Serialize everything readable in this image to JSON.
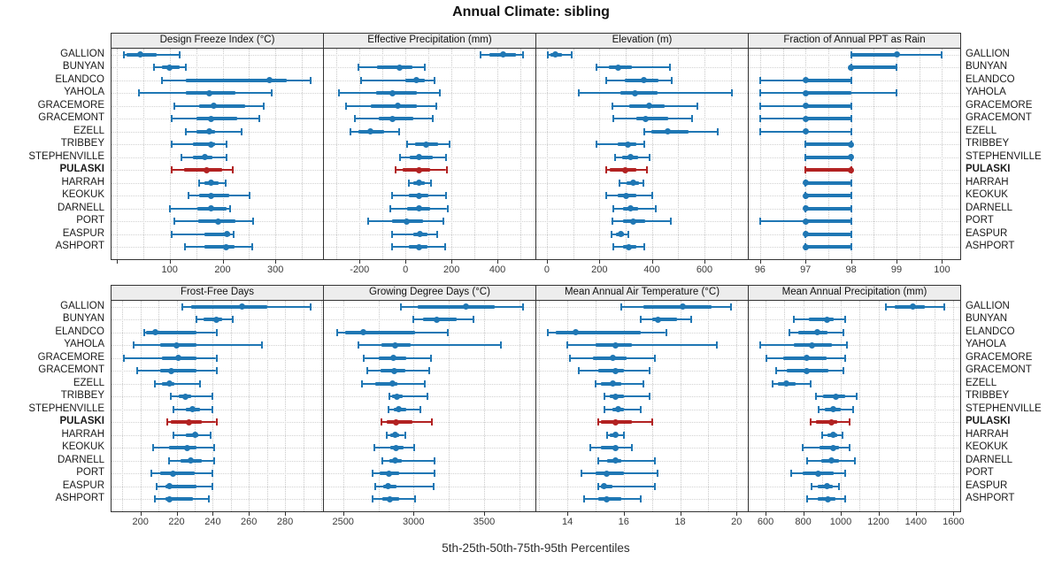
{
  "title": "Annual Climate: sibling",
  "x_axis_footer": "5th-25th-50th-75th-95th Percentiles",
  "locations": [
    "GALLION",
    "BUNYAN",
    "ELANDCO",
    "YAHOLA",
    "GRACEMORE",
    "GRACEMONT",
    "EZELL",
    "TRIBBEY",
    "STEPHENVILLE",
    "PULASKI",
    "HARRAH",
    "KEOKUK",
    "DARNELL",
    "PORT",
    "EASPUR",
    "ASHPORT"
  ],
  "highlight_location": "PULASKI",
  "percentile_levels": [
    5,
    25,
    50,
    75,
    95
  ],
  "colors": {
    "series": "#1f77b4",
    "highlight": "#b22222",
    "strip_bg": "#ededed",
    "panel_border": "#333333",
    "grid": "#c9c9c9",
    "tick_text": "#3a3a3a",
    "label_text": "#1a1a1a"
  },
  "chart_data": [
    {
      "type": "percentile-dotplot",
      "title": "Design Freeze Index (°C)",
      "xlim": [
        -10,
        390
      ],
      "grid_step": 50,
      "tick_values": [
        0,
        100,
        200,
        300
      ],
      "tick_labels": [
        "",
        "100",
        "200",
        "300"
      ],
      "percentiles": [
        [
          14,
          19,
          44,
          75,
          119
        ],
        [
          71,
          86,
          100,
          119,
          131
        ],
        [
          86,
          131,
          289,
          322,
          366
        ],
        [
          42,
          131,
          175,
          225,
          293
        ],
        [
          108,
          156,
          183,
          242,
          278
        ],
        [
          104,
          150,
          178,
          228,
          269
        ],
        [
          131,
          150,
          175,
          186,
          236
        ],
        [
          104,
          144,
          178,
          186,
          208
        ],
        [
          122,
          144,
          167,
          181,
          208
        ],
        [
          104,
          127,
          169,
          200,
          219
        ],
        [
          156,
          165,
          179,
          192,
          206
        ],
        [
          135,
          155,
          178,
          212,
          251
        ],
        [
          100,
          153,
          179,
          208,
          214
        ],
        [
          109,
          154,
          192,
          225,
          258
        ],
        [
          104,
          166,
          209,
          215,
          221
        ],
        [
          128,
          166,
          206,
          222,
          256
        ]
      ]
    },
    {
      "type": "percentile-dotplot",
      "title": "Effective Precipitation (mm)",
      "xlim": [
        -355,
        565
      ],
      "grid_step": 100,
      "tick_values": [
        -200,
        0,
        200,
        400
      ],
      "tick_labels": [
        "-200",
        "0",
        "200",
        "400"
      ],
      "percentiles": [
        [
          325,
          365,
          425,
          480,
          510
        ],
        [
          -205,
          -125,
          -25,
          30,
          85
        ],
        [
          -195,
          0,
          48,
          85,
          125
        ],
        [
          -290,
          -130,
          -55,
          50,
          150
        ],
        [
          -260,
          -150,
          -32,
          48,
          135
        ],
        [
          -220,
          -115,
          -55,
          35,
          120
        ],
        [
          -240,
          -205,
          -153,
          -95,
          -28
        ],
        [
          5,
          40,
          90,
          140,
          190
        ],
        [
          -25,
          20,
          57,
          120,
          175
        ],
        [
          -42,
          -13,
          57,
          108,
          178
        ],
        [
          13,
          32,
          60,
          83,
          110
        ],
        [
          -60,
          13,
          60,
          100,
          175
        ],
        [
          -66,
          6,
          60,
          108,
          182
        ],
        [
          -163,
          -57,
          6,
          76,
          163
        ],
        [
          -57,
          32,
          64,
          95,
          137
        ],
        [
          -57,
          13,
          57,
          95,
          172
        ]
      ]
    },
    {
      "type": "percentile-dotplot",
      "title": "Elevation (m)",
      "xlim": [
        -40,
        765
      ],
      "grid_step": 100,
      "tick_values": [
        0,
        200,
        400,
        600
      ],
      "tick_labels": [
        "0",
        "200",
        "400",
        "600"
      ],
      "percentiles": [
        [
          5,
          15,
          32,
          58,
          95
        ],
        [
          190,
          235,
          270,
          325,
          470
        ],
        [
          225,
          295,
          370,
          425,
          475
        ],
        [
          120,
          280,
          335,
          420,
          705
        ],
        [
          250,
          313,
          390,
          447,
          572
        ],
        [
          254,
          341,
          377,
          463,
          554
        ],
        [
          372,
          397,
          460,
          540,
          650
        ],
        [
          190,
          270,
          310,
          340,
          372
        ],
        [
          258,
          285,
          317,
          347,
          390
        ],
        [
          225,
          240,
          297,
          340,
          380
        ],
        [
          278,
          302,
          330,
          350,
          367
        ],
        [
          225,
          270,
          302,
          340,
          402
        ],
        [
          254,
          291,
          317,
          347,
          413
        ],
        [
          250,
          291,
          327,
          374,
          472
        ],
        [
          247,
          263,
          280,
          294,
          311
        ],
        [
          254,
          291,
          313,
          341,
          372
        ]
      ]
    },
    {
      "type": "percentile-dotplot",
      "title": "Fraction of Annual PPT as Rain",
      "xlim": [
        95.75,
        100.4
      ],
      "grid_step": 0.5,
      "tick_values": [
        96,
        97,
        98,
        99,
        100
      ],
      "tick_labels": [
        "96",
        "97",
        "98",
        "99",
        "100"
      ],
      "percentiles": [
        [
          98,
          98,
          99,
          99,
          100
        ],
        [
          98,
          98,
          98,
          99,
          99
        ],
        [
          96,
          97,
          97,
          98,
          98
        ],
        [
          96,
          97,
          97,
          98,
          99
        ],
        [
          96,
          97,
          97,
          98,
          98
        ],
        [
          96,
          97,
          97,
          98,
          98
        ],
        [
          96,
          97,
          97,
          97,
          98
        ],
        [
          97,
          97,
          98,
          98,
          98
        ],
        [
          97,
          97,
          98,
          98,
          98
        ],
        [
          97,
          97,
          98,
          98,
          98
        ],
        [
          97,
          97,
          97,
          98,
          98
        ],
        [
          97,
          97,
          97,
          98,
          98
        ],
        [
          97,
          97,
          97,
          98,
          98
        ],
        [
          96,
          97,
          97,
          98,
          98
        ],
        [
          97,
          97,
          97,
          98,
          98
        ],
        [
          97,
          97,
          97,
          98,
          98
        ]
      ]
    },
    {
      "type": "percentile-dotplot",
      "title": "Frost-Free Days",
      "xlim": [
        184,
        301
      ],
      "grid_step": 10,
      "tick_values": [
        200,
        220,
        240,
        260,
        280
      ],
      "tick_labels": [
        "200",
        "220",
        "240",
        "260",
        "280"
      ],
      "percentiles": [
        [
          223,
          228,
          256,
          270,
          294
        ],
        [
          231,
          235,
          242,
          245,
          251
        ],
        [
          202,
          203,
          208,
          231,
          242
        ],
        [
          196,
          211,
          220,
          231,
          267
        ],
        [
          191,
          212,
          221,
          231,
          242
        ],
        [
          198,
          211,
          217,
          231,
          242
        ],
        [
          208,
          212,
          216,
          219,
          233
        ],
        [
          217,
          221,
          225,
          228,
          240
        ],
        [
          218,
          225,
          229,
          233,
          240
        ],
        [
          215,
          217,
          227,
          234,
          242
        ],
        [
          218,
          225,
          230,
          232,
          239
        ],
        [
          207,
          216,
          226,
          231,
          241
        ],
        [
          216,
          222,
          228,
          234,
          241
        ],
        [
          206,
          211,
          218,
          230,
          240
        ],
        [
          209,
          214,
          216,
          231,
          240
        ],
        [
          208,
          214,
          216,
          229,
          238
        ]
      ]
    },
    {
      "type": "percentile-dotplot",
      "title": "Growing Degree Days (°C)",
      "xlim": [
        2364,
        3864
      ],
      "grid_step": 250,
      "tick_values": [
        2500,
        3000,
        3500
      ],
      "tick_labels": [
        "2500",
        "3000",
        "3500"
      ],
      "percentiles": [
        [
          2910,
          3030,
          3370,
          3575,
          3775
        ],
        [
          2995,
          3065,
          3165,
          3305,
          3425
        ],
        [
          2458,
          2515,
          2640,
          3010,
          3240
        ],
        [
          2608,
          2770,
          2870,
          2980,
          3620
        ],
        [
          2645,
          2755,
          2858,
          2948,
          3125
        ],
        [
          2670,
          2765,
          2865,
          2940,
          3110
        ],
        [
          2635,
          2730,
          2848,
          2885,
          3077
        ],
        [
          2827,
          2848,
          2879,
          2920,
          3098
        ],
        [
          2820,
          2858,
          2895,
          2950,
          3050
        ],
        [
          2770,
          2812,
          2875,
          2990,
          3130
        ],
        [
          2812,
          2833,
          2870,
          2895,
          2938
        ],
        [
          2719,
          2833,
          2875,
          2927,
          3004
        ],
        [
          2781,
          2827,
          2869,
          2917,
          3146
        ],
        [
          2708,
          2760,
          2823,
          2896,
          3146
        ],
        [
          2729,
          2785,
          2821,
          2879,
          3140
        ],
        [
          2712,
          2781,
          2833,
          2896,
          3010
        ]
      ]
    },
    {
      "type": "percentile-dotplot",
      "title": "Mean Annual Air Temperature (°C)",
      "xlim": [
        12.9,
        20.4
      ],
      "grid_step": 1,
      "tick_values": [
        14,
        16,
        18,
        20
      ],
      "tick_labels": [
        "14",
        "16",
        "18",
        "20"
      ],
      "percentiles": [
        [
          15.9,
          16.7,
          18.1,
          19.1,
          19.8
        ],
        [
          16.6,
          17.0,
          17.2,
          17.9,
          18.4
        ],
        [
          13.3,
          13.6,
          14.3,
          16.6,
          17.5
        ],
        [
          14.0,
          15.0,
          15.7,
          16.3,
          19.3
        ],
        [
          14.1,
          14.9,
          15.6,
          16.1,
          17.1
        ],
        [
          14.4,
          15.1,
          15.7,
          16.0,
          16.9
        ],
        [
          15.0,
          15.2,
          15.6,
          15.9,
          16.7
        ],
        [
          15.3,
          15.5,
          15.7,
          16.0,
          16.9
        ],
        [
          15.3,
          15.6,
          15.8,
          16.0,
          16.6
        ],
        [
          15.1,
          15.2,
          15.7,
          16.3,
          17.0
        ],
        [
          15.4,
          15.5,
          15.7,
          15.8,
          16.0
        ],
        [
          14.8,
          15.2,
          15.7,
          15.8,
          16.3
        ],
        [
          15.1,
          15.4,
          15.7,
          15.9,
          17.1
        ],
        [
          14.5,
          15.0,
          15.4,
          16.0,
          17.2
        ],
        [
          15.1,
          15.2,
          15.3,
          15.6,
          17.1
        ],
        [
          14.6,
          15.1,
          15.4,
          15.9,
          16.6
        ]
      ]
    },
    {
      "type": "percentile-dotplot",
      "title": "Mean Annual Precipitation (mm)",
      "xlim": [
        510,
        1636
      ],
      "grid_step": 100,
      "tick_values": [
        600,
        800,
        1000,
        1200,
        1400,
        1600
      ],
      "tick_labels": [
        "600",
        "800",
        "1000",
        "1200",
        "1400",
        "1600"
      ],
      "percentiles": [
        [
          1238,
          1286,
          1382,
          1450,
          1550
        ],
        [
          748,
          830,
          928,
          962,
          1025
        ],
        [
          725,
          773,
          877,
          928,
          1014
        ],
        [
          570,
          752,
          846,
          955,
          1035
        ],
        [
          605,
          695,
          818,
          923,
          1025
        ],
        [
          654,
          710,
          818,
          934,
          1014
        ],
        [
          639,
          664,
          710,
          760,
          841
        ],
        [
          866,
          905,
          973,
          1025,
          1084
        ],
        [
          880,
          913,
          959,
          998,
          1068
        ],
        [
          838,
          866,
          951,
          981,
          1048
        ],
        [
          900,
          927,
          959,
          981,
          1009
        ],
        [
          796,
          888,
          959,
          989,
          1048
        ],
        [
          822,
          895,
          951,
          989,
          1074
        ],
        [
          734,
          796,
          880,
          962,
          1025
        ],
        [
          843,
          877,
          928,
          959,
          990
        ],
        [
          822,
          877,
          931,
          970,
          1025
        ]
      ]
    }
  ]
}
